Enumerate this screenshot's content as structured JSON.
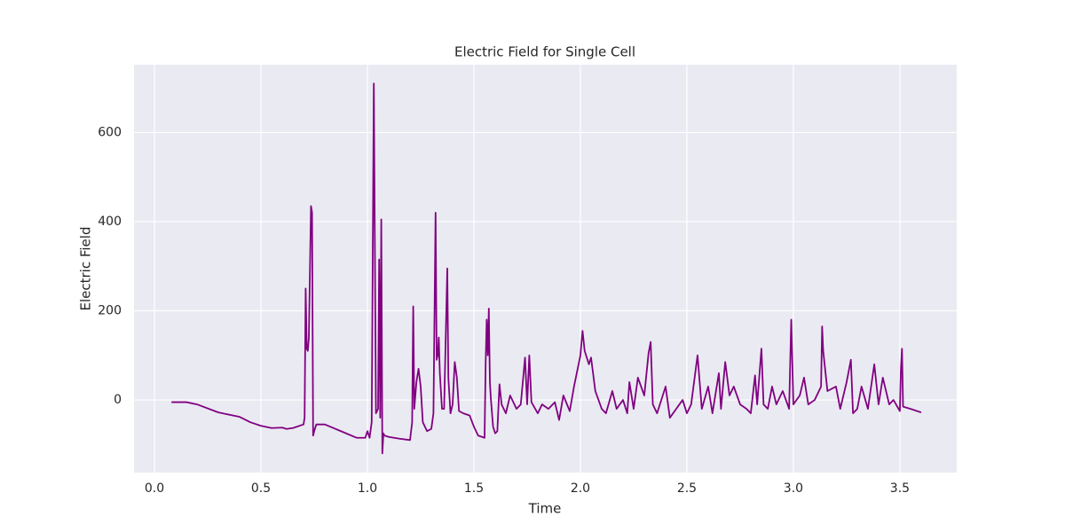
{
  "chart_data": {
    "type": "line",
    "title": "Electric Field for Single Cell",
    "x_label": "Time",
    "y_label": "Electric Field",
    "xlim": [
      -0.096,
      3.767
    ],
    "ylim": [
      -163,
      752
    ],
    "xticks": [
      {
        "value": 0,
        "label": "0.0"
      },
      0.5,
      {
        "value": 1,
        "label": "1.0"
      },
      1.5,
      {
        "value": 2,
        "label": "2.0"
      },
      2.5,
      {
        "value": 3,
        "label": "3.0"
      },
      3.5
    ],
    "yticks": [
      0,
      200,
      400,
      600
    ],
    "grid": true,
    "background": "#eaeaf2",
    "x": [
      0.08,
      0.15,
      0.2,
      0.3,
      0.4,
      0.45,
      0.5,
      0.55,
      0.6,
      0.62,
      0.65,
      0.7,
      0.705,
      0.71,
      0.715,
      0.72,
      0.725,
      0.735,
      0.74,
      0.745,
      0.75,
      0.76,
      0.8,
      0.85,
      0.9,
      0.95,
      0.99,
      1.0,
      1.01,
      1.02,
      1.03,
      1.04,
      1.05,
      1.055,
      1.06,
      1.065,
      1.07,
      1.075,
      1.08,
      1.1,
      1.15,
      1.2,
      1.21,
      1.215,
      1.22,
      1.23,
      1.24,
      1.25,
      1.26,
      1.28,
      1.3,
      1.31,
      1.32,
      1.325,
      1.33,
      1.335,
      1.34,
      1.35,
      1.36,
      1.375,
      1.38,
      1.39,
      1.4,
      1.41,
      1.42,
      1.43,
      1.45,
      1.48,
      1.5,
      1.52,
      1.55,
      1.555,
      1.56,
      1.565,
      1.57,
      1.575,
      1.58,
      1.59,
      1.6,
      1.61,
      1.62,
      1.63,
      1.65,
      1.67,
      1.7,
      1.72,
      1.74,
      1.75,
      1.76,
      1.77,
      1.8,
      1.82,
      1.85,
      1.88,
      1.9,
      1.92,
      1.95,
      1.97,
      2.0,
      2.01,
      2.02,
      2.04,
      2.05,
      2.07,
      2.1,
      2.12,
      2.15,
      2.17,
      2.2,
      2.22,
      2.23,
      2.25,
      2.27,
      2.3,
      2.32,
      2.33,
      2.34,
      2.36,
      2.4,
      2.42,
      2.45,
      2.48,
      2.5,
      2.52,
      2.55,
      2.57,
      2.6,
      2.62,
      2.65,
      2.66,
      2.68,
      2.7,
      2.72,
      2.75,
      2.78,
      2.8,
      2.82,
      2.83,
      2.85,
      2.86,
      2.88,
      2.9,
      2.92,
      2.95,
      2.98,
      2.99,
      3.0,
      3.03,
      3.05,
      3.07,
      3.1,
      3.13,
      3.135,
      3.14,
      3.16,
      3.2,
      3.22,
      3.25,
      3.27,
      3.28,
      3.3,
      3.32,
      3.35,
      3.38,
      3.4,
      3.42,
      3.45,
      3.47,
      3.5,
      3.505,
      3.51,
      3.515,
      3.55,
      3.6
    ],
    "series": [
      {
        "color": "#800080",
        "values": [
          -5,
          -5,
          -10,
          -28,
          -38,
          -50,
          -58,
          -63,
          -62,
          -65,
          -63,
          -55,
          -40,
          250,
          115,
          110,
          140,
          435,
          420,
          -80,
          -70,
          -55,
          -55,
          -65,
          -75,
          -85,
          -85,
          -70,
          -85,
          -50,
          710,
          -30,
          -20,
          315,
          -40,
          405,
          -120,
          -75,
          -80,
          -83,
          -87,
          -90,
          -50,
          210,
          -20,
          40,
          70,
          30,
          -50,
          -70,
          -65,
          -30,
          420,
          90,
          100,
          140,
          60,
          -20,
          -20,
          295,
          50,
          -30,
          -10,
          85,
          50,
          -25,
          -30,
          -35,
          -60,
          -80,
          -85,
          80,
          180,
          100,
          205,
          40,
          0,
          -60,
          -75,
          -70,
          35,
          -10,
          -30,
          10,
          -20,
          -10,
          95,
          -10,
          100,
          -5,
          -30,
          -10,
          -20,
          -5,
          -45,
          10,
          -25,
          30,
          100,
          155,
          110,
          80,
          95,
          20,
          -20,
          -30,
          20,
          -20,
          0,
          -30,
          40,
          -20,
          50,
          10,
          105,
          130,
          -10,
          -30,
          30,
          -40,
          -20,
          0,
          -30,
          -10,
          100,
          -20,
          30,
          -30,
          60,
          -20,
          85,
          10,
          30,
          -10,
          -20,
          -30,
          55,
          -10,
          115,
          -10,
          -20,
          30,
          -10,
          20,
          -20,
          180,
          -10,
          10,
          50,
          -10,
          0,
          30,
          165,
          110,
          20,
          30,
          -20,
          40,
          90,
          -30,
          -20,
          30,
          -20,
          80,
          -10,
          50,
          -10,
          0,
          -25,
          70,
          115,
          -15,
          -20,
          -28
        ]
      }
    ]
  }
}
